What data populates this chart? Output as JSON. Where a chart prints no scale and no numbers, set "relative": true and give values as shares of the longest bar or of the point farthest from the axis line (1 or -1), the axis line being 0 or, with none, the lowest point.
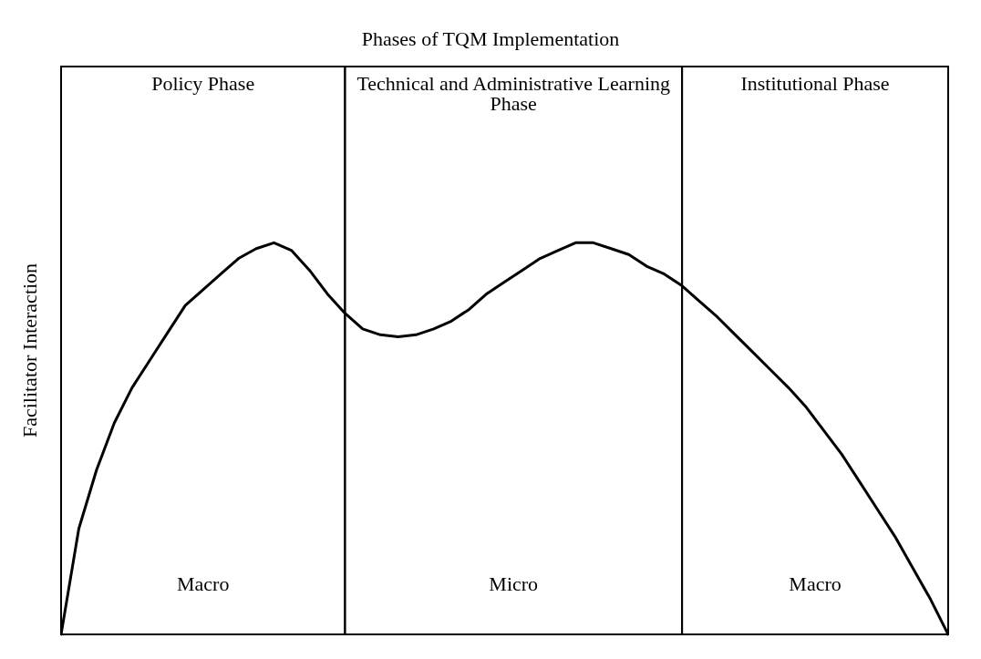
{
  "chart_data": {
    "type": "line",
    "title": "Phases of TQM Implementation",
    "ylabel": "Facilitator Interaction",
    "relative": true,
    "marker": "none",
    "line_style": "solid",
    "color": "#000000",
    "categories": [
      null,
      null,
      null,
      null,
      null,
      null,
      null,
      null,
      null,
      null,
      null,
      null,
      null,
      null,
      null,
      null,
      null,
      null,
      null,
      null,
      null,
      null,
      null,
      null,
      null,
      null,
      null,
      null,
      null,
      null,
      null,
      null,
      null,
      null,
      null,
      null,
      null,
      null,
      null,
      null,
      null,
      null,
      null,
      null,
      null,
      null,
      null,
      null,
      null,
      null,
      null
    ],
    "values": [
      0,
      0.27,
      0.42,
      0.54,
      0.63,
      0.7,
      0.77,
      0.84,
      0.88,
      0.92,
      0.96,
      0.985,
      1.0,
      0.98,
      0.93,
      0.87,
      0.82,
      0.78,
      0.765,
      0.76,
      0.765,
      0.78,
      0.8,
      0.83,
      0.87,
      0.9,
      0.93,
      0.96,
      0.98,
      1.0,
      1.0,
      0.985,
      0.97,
      0.94,
      0.92,
      0.89,
      0.85,
      0.81,
      0.765,
      0.72,
      0.675,
      0.63,
      0.58,
      0.52,
      0.46,
      0.39,
      0.32,
      0.25,
      0.17,
      0.09,
      0
    ],
    "annotations": [
      "Policy Phase",
      "Technical and Administrative Learning Phase",
      "Institutional Phase",
      "Macro",
      "Micro",
      "Macro"
    ]
  }
}
